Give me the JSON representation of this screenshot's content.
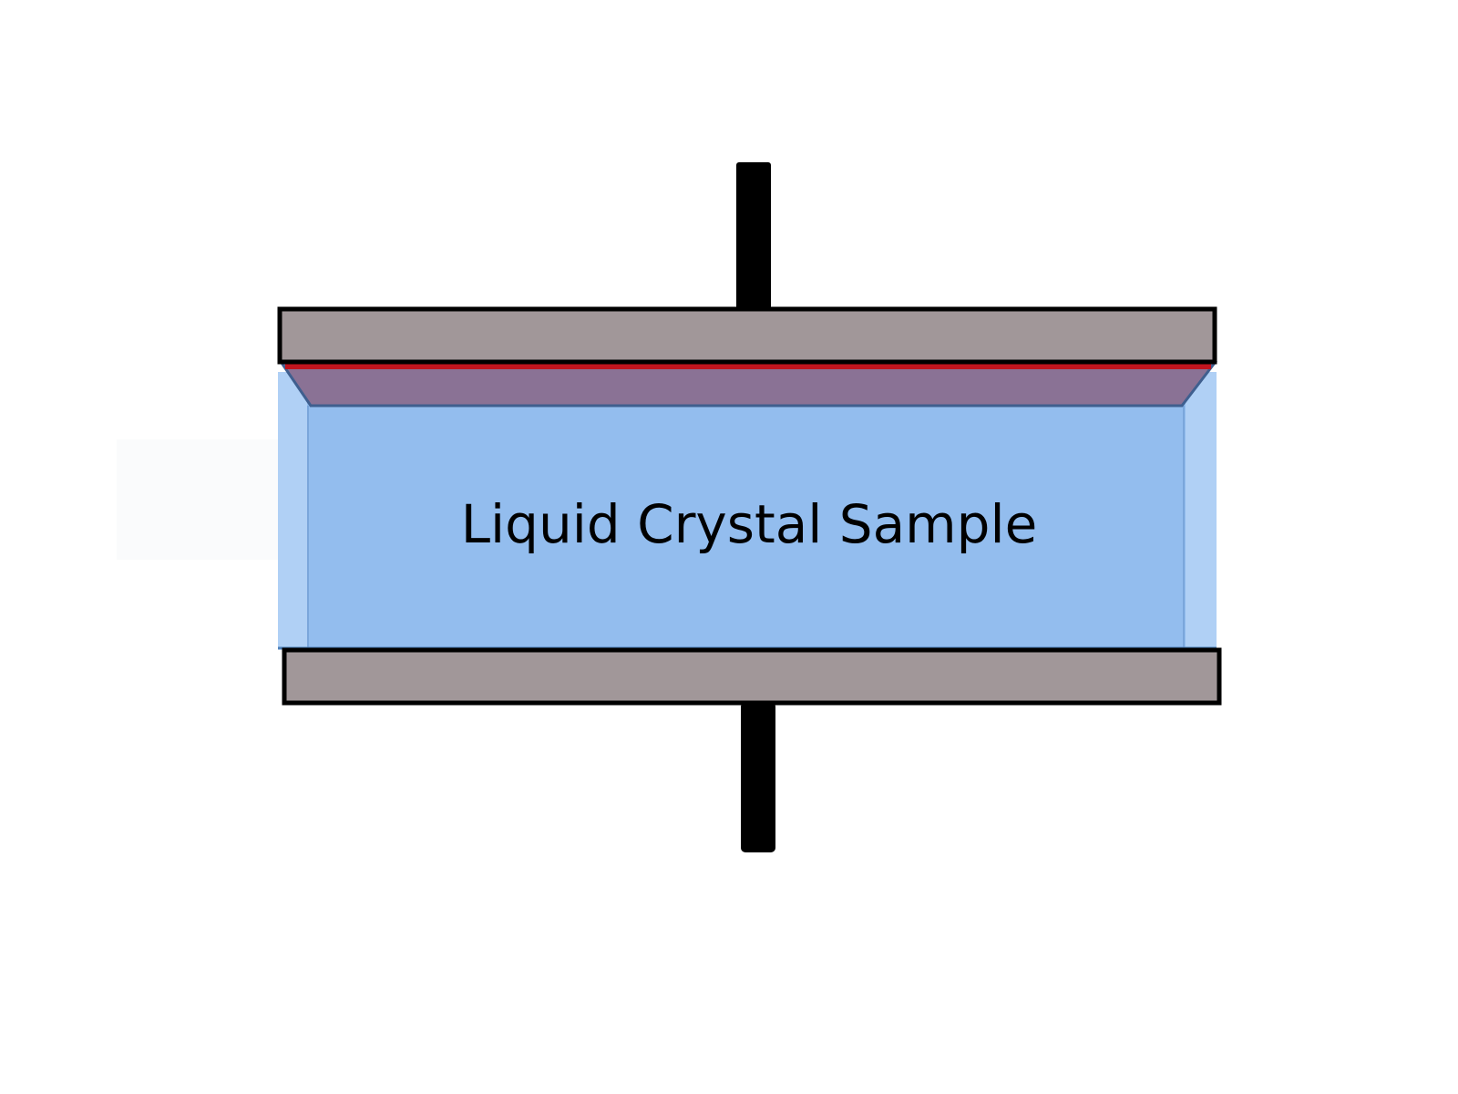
{
  "diagram": {
    "sample_label": "Liquid Crystal Sample",
    "colors": {
      "background": "#ffffff",
      "plate": "#a19799",
      "outline": "#000000",
      "sample_fill": "#93bdee",
      "sample_side": "#b0d0f5",
      "sample_edge": "#4d7fb8",
      "top_layer": "#8a7295",
      "top_layer_edge": "#c0141e",
      "rod": "#000000"
    }
  }
}
